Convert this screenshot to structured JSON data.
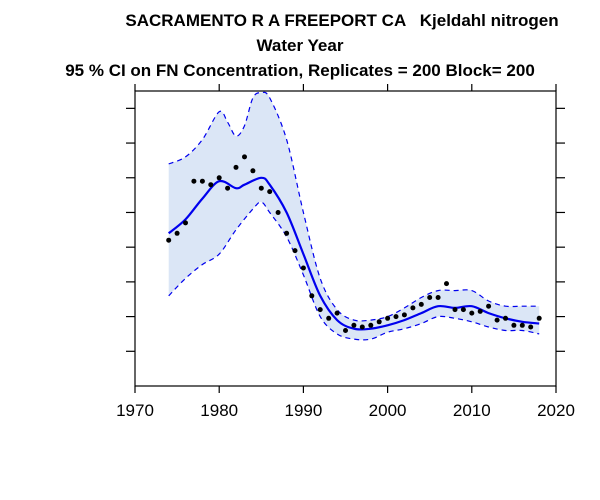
{
  "title_lines": [
    "SACRAMENTO R A FREEPORT CA   Kjeldahl nitrogen",
    "Water Year",
    "95 % CI on FN Concentration, Replicates = 200 Block= 200"
  ],
  "chart_data": {
    "type": "line",
    "xlim": [
      1970,
      2020
    ],
    "ylim": [
      0,
      8.5
    ],
    "x_ticks": [
      1970,
      1980,
      1990,
      2000,
      2010,
      2020
    ],
    "y_ticks": [
      1,
      2,
      3,
      4,
      5,
      6,
      7,
      8
    ],
    "y_tick_labels_shown": false,
    "grid": false,
    "colors": {
      "trend": "#0000ee",
      "band_fill": "#dbe6f6",
      "band_edge": "#0000ee",
      "points": "#000000"
    },
    "trend": {
      "x": [
        1974,
        1976,
        1978,
        1980,
        1982,
        1983,
        1985,
        1986,
        1988,
        1990,
        1992,
        1994,
        1996,
        1998,
        2000,
        2002,
        2004,
        2006,
        2008,
        2010,
        2012,
        2014,
        2016,
        2018
      ],
      "y": [
        4.4,
        4.8,
        5.4,
        5.9,
        5.7,
        5.8,
        6.0,
        5.8,
        5.0,
        3.8,
        2.6,
        1.9,
        1.65,
        1.65,
        1.75,
        1.9,
        2.1,
        2.3,
        2.25,
        2.3,
        2.1,
        1.95,
        1.85,
        1.8
      ]
    },
    "ci_upper": {
      "x": [
        1974,
        1976,
        1978,
        1980,
        1981,
        1982,
        1983,
        1984,
        1985,
        1986,
        1988,
        1990,
        1992,
        1994,
        1996,
        1998,
        2000,
        2002,
        2004,
        2006,
        2008,
        2010,
        2012,
        2014,
        2016,
        2018
      ],
      "y": [
        6.4,
        6.6,
        7.1,
        7.9,
        7.6,
        7.2,
        7.5,
        8.3,
        8.45,
        8.3,
        7.1,
        5.0,
        3.1,
        2.2,
        1.9,
        1.9,
        2.0,
        2.25,
        2.55,
        2.75,
        2.75,
        2.75,
        2.45,
        2.3,
        2.3,
        2.3
      ]
    },
    "ci_lower": {
      "x": [
        1974,
        1976,
        1978,
        1980,
        1982,
        1984,
        1985,
        1986,
        1988,
        1990,
        1992,
        1994,
        1996,
        1998,
        2000,
        2002,
        2004,
        2006,
        2008,
        2010,
        2012,
        2014,
        2016,
        2018
      ],
      "y": [
        2.6,
        3.1,
        3.5,
        3.8,
        4.5,
        5.1,
        5.3,
        5.0,
        4.3,
        3.2,
        2.0,
        1.5,
        1.35,
        1.35,
        1.55,
        1.65,
        1.8,
        2.0,
        1.95,
        1.85,
        1.7,
        1.6,
        1.6,
        1.5
      ]
    },
    "observations": {
      "x": [
        1974,
        1975,
        1976,
        1977,
        1978,
        1979,
        1980,
        1981,
        1982,
        1983,
        1984,
        1985,
        1986,
        1987,
        1988,
        1989,
        1990,
        1991,
        1992,
        1993,
        1994,
        1995,
        1996,
        1997,
        1998,
        1999,
        2000,
        2001,
        2002,
        2003,
        2004,
        2005,
        2006,
        2007,
        2008,
        2009,
        2010,
        2011,
        2012,
        2013,
        2014,
        2015,
        2016,
        2017,
        2018
      ],
      "y": [
        4.2,
        4.4,
        4.7,
        5.9,
        5.9,
        5.8,
        6.0,
        5.7,
        6.3,
        6.6,
        6.2,
        5.7,
        5.6,
        5.0,
        4.4,
        3.9,
        3.4,
        2.6,
        2.2,
        1.95,
        2.1,
        1.6,
        1.75,
        1.7,
        1.75,
        1.85,
        1.95,
        2.0,
        2.05,
        2.25,
        2.35,
        2.55,
        2.55,
        2.95,
        2.2,
        2.2,
        2.1,
        2.15,
        2.3,
        1.9,
        1.95,
        1.75,
        1.75,
        1.7,
        1.95
      ]
    }
  }
}
